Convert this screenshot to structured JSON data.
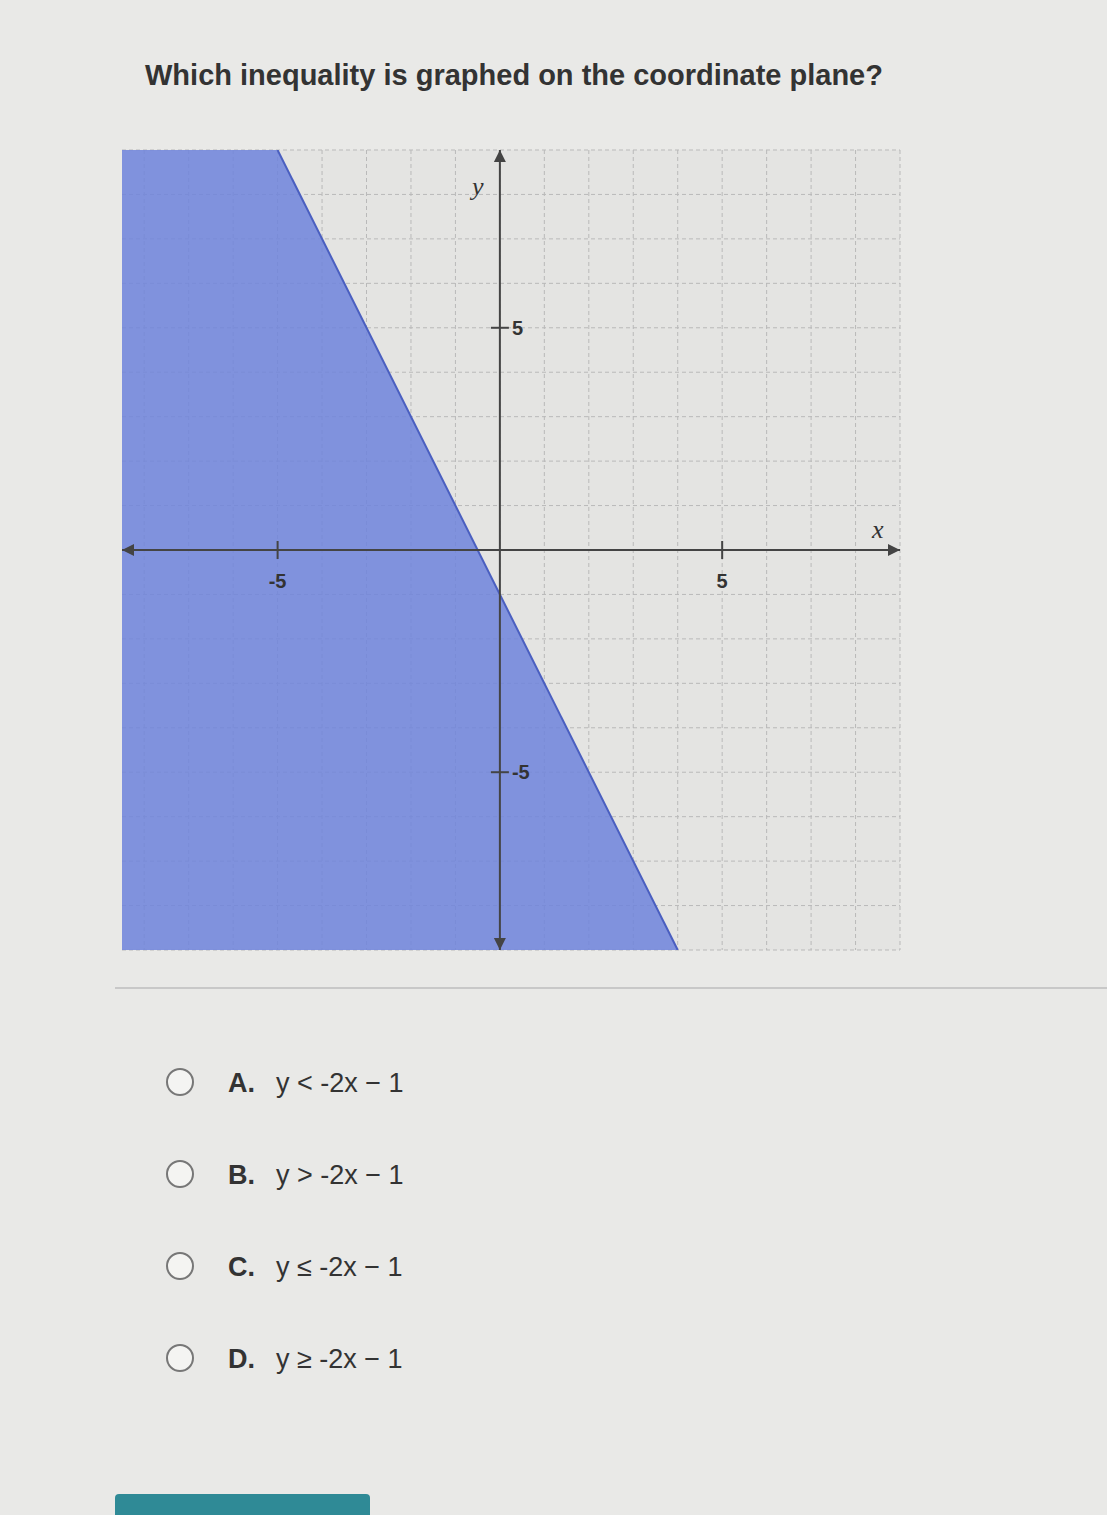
{
  "question": "Which inequality is graphed on the coordinate plane?",
  "chart_data": {
    "type": "area",
    "x_label": "x",
    "y_label": "y",
    "x": [
      -5,
      4
    ],
    "values": [
      9,
      -9
    ],
    "color": "#6f84dc",
    "line_style": "solid",
    "xlim": [
      -8.5,
      9
    ],
    "ylim": [
      -9,
      9
    ],
    "xticks": [
      -5,
      5
    ],
    "yticks": [
      -5,
      5
    ],
    "grid": true
  },
  "options": [
    {
      "letter": "A.",
      "text": "y < -2x − 1"
    },
    {
      "letter": "B.",
      "text": "y > -2x − 1"
    },
    {
      "letter": "C.",
      "text": "y ≤ -2x − 1"
    },
    {
      "letter": "D.",
      "text": "y ≥ -2x − 1"
    }
  ]
}
